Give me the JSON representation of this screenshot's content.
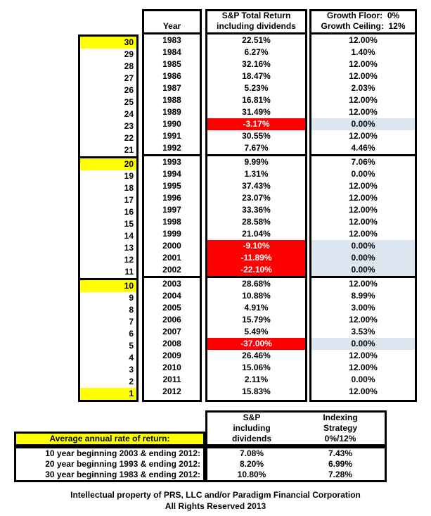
{
  "colors": {
    "milestone_highlight": "#ffff00",
    "negative_return_bg": "#ff0000",
    "negative_return_text": "#ffffff",
    "floor_year_bg": "#dce6f1",
    "border": "#000000"
  },
  "table": {
    "headers": {
      "year": "Year",
      "sp_line1": "S&P Total Return",
      "sp_line2": "including dividends",
      "growth_line1": "Growth Floor:  0%",
      "growth_line2": "Growth Ceiling:  12%"
    },
    "rows": [
      {
        "count": "30",
        "year": "1983",
        "sp": "22.51%",
        "growth": "12.00%",
        "hl": true,
        "neg": false
      },
      {
        "count": "29",
        "year": "1984",
        "sp": "6.27%",
        "growth": "1.40%",
        "hl": false,
        "neg": false
      },
      {
        "count": "28",
        "year": "1985",
        "sp": "32.16%",
        "growth": "12.00%",
        "hl": false,
        "neg": false
      },
      {
        "count": "27",
        "year": "1986",
        "sp": "18.47%",
        "growth": "12.00%",
        "hl": false,
        "neg": false
      },
      {
        "count": "26",
        "year": "1987",
        "sp": "5.23%",
        "growth": "2.03%",
        "hl": false,
        "neg": false
      },
      {
        "count": "25",
        "year": "1988",
        "sp": "16.81%",
        "growth": "12.00%",
        "hl": false,
        "neg": false
      },
      {
        "count": "24",
        "year": "1989",
        "sp": "31.49%",
        "growth": "12.00%",
        "hl": false,
        "neg": false
      },
      {
        "count": "23",
        "year": "1990",
        "sp": "-3.17%",
        "growth": "0.00%",
        "hl": false,
        "neg": true
      },
      {
        "count": "22",
        "year": "1991",
        "sp": "30.55%",
        "growth": "12.00%",
        "hl": false,
        "neg": false
      },
      {
        "count": "21",
        "year": "1992",
        "sp": "7.67%",
        "growth": "4.46%",
        "hl": false,
        "neg": false
      },
      {
        "count": "20",
        "year": "1993",
        "sp": "9.99%",
        "growth": "7.06%",
        "hl": true,
        "neg": false
      },
      {
        "count": "19",
        "year": "1994",
        "sp": "1.31%",
        "growth": "0.00%",
        "hl": false,
        "neg": false
      },
      {
        "count": "18",
        "year": "1995",
        "sp": "37.43%",
        "growth": "12.00%",
        "hl": false,
        "neg": false
      },
      {
        "count": "17",
        "year": "1996",
        "sp": "23.07%",
        "growth": "12.00%",
        "hl": false,
        "neg": false
      },
      {
        "count": "16",
        "year": "1997",
        "sp": "33.36%",
        "growth": "12.00%",
        "hl": false,
        "neg": false
      },
      {
        "count": "15",
        "year": "1998",
        "sp": "28.58%",
        "growth": "12.00%",
        "hl": false,
        "neg": false
      },
      {
        "count": "14",
        "year": "1999",
        "sp": "21.04%",
        "growth": "12.00%",
        "hl": false,
        "neg": false
      },
      {
        "count": "13",
        "year": "2000",
        "sp": "-9.10%",
        "growth": "0.00%",
        "hl": false,
        "neg": true
      },
      {
        "count": "12",
        "year": "2001",
        "sp": "-11.89%",
        "growth": "0.00%",
        "hl": false,
        "neg": true
      },
      {
        "count": "11",
        "year": "2002",
        "sp": "-22.10%",
        "growth": "0.00%",
        "hl": false,
        "neg": true
      },
      {
        "count": "10",
        "year": "2003",
        "sp": "28.68%",
        "growth": "12.00%",
        "hl": true,
        "neg": false
      },
      {
        "count": "9",
        "year": "2004",
        "sp": "10.88%",
        "growth": "8.99%",
        "hl": false,
        "neg": false
      },
      {
        "count": "8",
        "year": "2005",
        "sp": "4.91%",
        "growth": "3.00%",
        "hl": false,
        "neg": false
      },
      {
        "count": "7",
        "year": "2006",
        "sp": "15.79%",
        "growth": "12.00%",
        "hl": false,
        "neg": false
      },
      {
        "count": "6",
        "year": "2007",
        "sp": "5.49%",
        "growth": "3.53%",
        "hl": false,
        "neg": false
      },
      {
        "count": "5",
        "year": "2008",
        "sp": "-37.00%",
        "growth": "0.00%",
        "hl": false,
        "neg": true
      },
      {
        "count": "4",
        "year": "2009",
        "sp": "26.46%",
        "growth": "12.00%",
        "hl": false,
        "neg": false
      },
      {
        "count": "3",
        "year": "2010",
        "sp": "15.06%",
        "growth": "12.00%",
        "hl": false,
        "neg": false
      },
      {
        "count": "2",
        "year": "2011",
        "sp": "2.11%",
        "growth": "0.00%",
        "hl": false,
        "neg": false
      },
      {
        "count": "1",
        "year": "2012",
        "sp": "15.83%",
        "growth": "12.00%",
        "hl": true,
        "neg": false
      }
    ]
  },
  "summary": {
    "title": "Average annual rate of return:",
    "col1_header": [
      "S&P",
      "including",
      "dividends"
    ],
    "col2_header": [
      "Indexing",
      "Strategy",
      "0%/12%"
    ],
    "rows": [
      {
        "label": "10 year beginning 2003 & ending 2012:",
        "sp": "7.08%",
        "idx": "7.43%"
      },
      {
        "label": "20 year beginning 1993 & ending 2012:",
        "sp": "8.20%",
        "idx": "6.99%"
      },
      {
        "label": "30 year beginning 1983 & ending 2012:",
        "sp": "10.80%",
        "idx": "7.28%"
      }
    ]
  },
  "footer": {
    "line1": "Intellectual property of PRS, LLC and/or Paradigm Financial Corporation",
    "line2": "All Rights Reserved 2013"
  }
}
